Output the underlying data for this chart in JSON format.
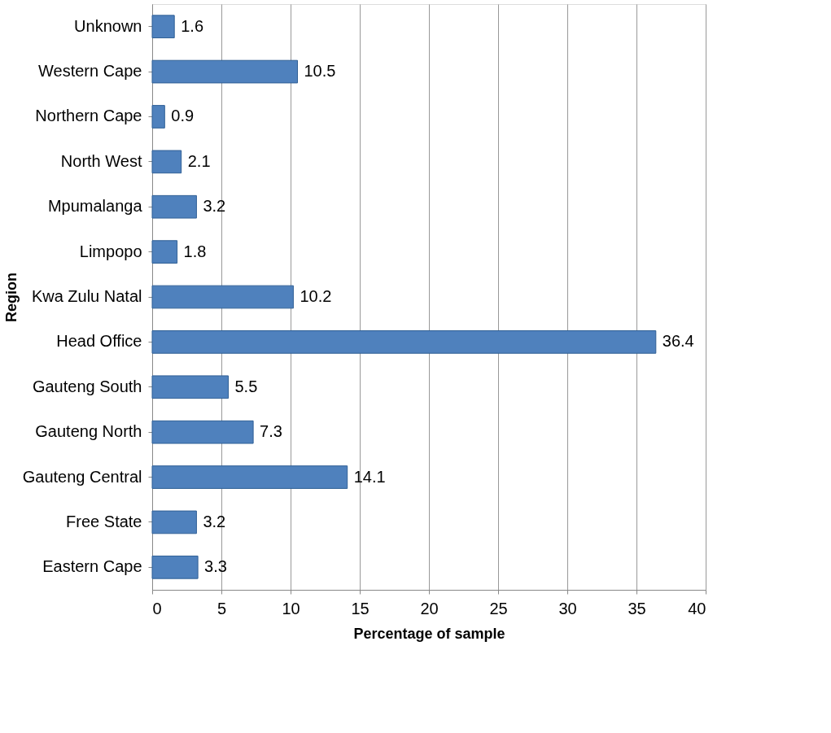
{
  "chart_data": {
    "type": "bar",
    "orientation": "horizontal",
    "xlabel": "Percentage of sample",
    "ylabel": "Region",
    "categories": [
      "Unknown",
      "Western Cape",
      "Northern Cape",
      "North West",
      "Mpumalanga",
      "Limpopo",
      "Kwa Zulu Natal",
      "Head Office",
      "Gauteng South",
      "Gauteng North",
      "Gauteng Central",
      "Free State",
      "Eastern Cape"
    ],
    "values": [
      1.6,
      10.5,
      0.9,
      2.1,
      3.2,
      1.8,
      10.2,
      36.4,
      5.5,
      7.3,
      14.1,
      3.2,
      3.3
    ],
    "color": "#4f81bd",
    "xlim": [
      0,
      40
    ],
    "xticks": [
      0,
      5,
      10,
      15,
      20,
      25,
      30,
      35,
      40
    ],
    "grid": "x",
    "data_labels": true
  }
}
